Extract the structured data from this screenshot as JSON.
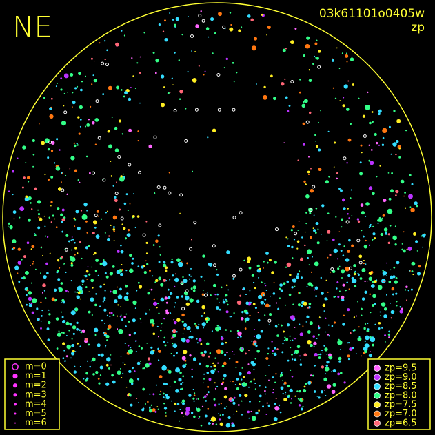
{
  "header": {
    "title": "NE",
    "frame_id": "03k61101o0405w",
    "mode": "zp"
  },
  "magnitude_legend": {
    "items": [
      "m=0",
      "m=1",
      "m=2",
      "m=3",
      "m=4",
      "m=5",
      "m=6"
    ],
    "color": "#ff33ff"
  },
  "zp_legend": {
    "items": [
      {
        "label": "zp=9.5",
        "color": "#ff66ff"
      },
      {
        "label": "zp=9.0",
        "color": "#bb33ff"
      },
      {
        "label": "zp=8.5",
        "color": "#33ddff"
      },
      {
        "label": "zp=8.0",
        "color": "#33ff88"
      },
      {
        "label": "zp=7.5",
        "color": "#ffee22"
      },
      {
        "label": "zp=7.0",
        "color": "#ff7711"
      },
      {
        "label": "zp=6.5",
        "color": "#ff6677"
      }
    ]
  }
}
